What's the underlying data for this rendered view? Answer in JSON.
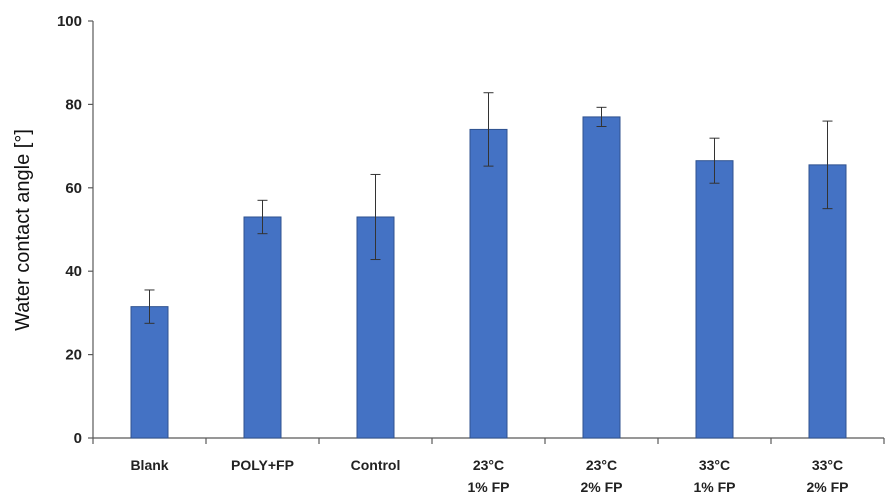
{
  "chart_data": {
    "type": "bar",
    "title": "",
    "xlabel": "",
    "ylabel": "Water contact angle [°]",
    "ylim": [
      0,
      100
    ],
    "yticks": [
      0,
      20,
      40,
      60,
      80,
      100
    ],
    "grid": false,
    "legend": "none",
    "bar_color": "#4472C4",
    "categories": [
      [
        "Blank"
      ],
      [
        "POLY+FP"
      ],
      [
        "Control"
      ],
      [
        "23°C",
        "1% FP"
      ],
      [
        "23°C",
        "2% FP"
      ],
      [
        "33°C",
        "1% FP"
      ],
      [
        "33°C",
        "2% FP"
      ]
    ],
    "values": [
      31.5,
      53,
      53,
      74,
      77,
      66.5,
      65.5
    ],
    "errors": [
      4,
      4,
      10.2,
      8.8,
      2.3,
      5.4,
      10.5
    ]
  }
}
